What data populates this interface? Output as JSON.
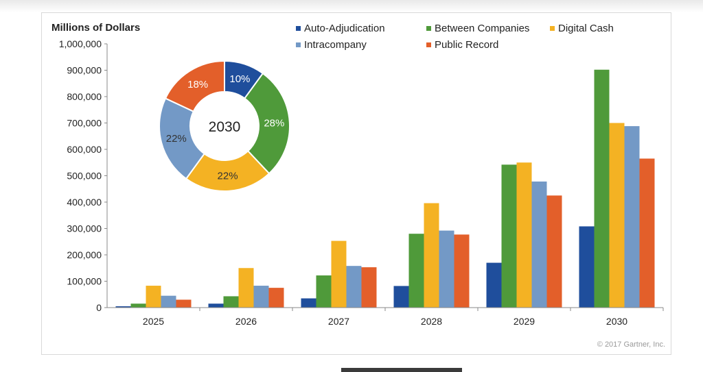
{
  "chart_data": {
    "type": "bar",
    "ylabel": "Millions of Dollars",
    "ylim": [
      0,
      1000000
    ],
    "yticks": [
      0,
      100000,
      200000,
      300000,
      400000,
      500000,
      600000,
      700000,
      800000,
      900000,
      1000000
    ],
    "ytick_labels": [
      "0",
      "100,000",
      "200,000",
      "300,000",
      "400,000",
      "500,000",
      "600,000",
      "700,000",
      "800,000",
      "900,000",
      "1,000,000"
    ],
    "categories": [
      "2025",
      "2026",
      "2027",
      "2028",
      "2029",
      "2030"
    ],
    "legend_position": "top-right",
    "series": [
      {
        "name": "Auto-Adjudication",
        "color": "#1f4e9c",
        "values": [
          5000,
          15000,
          35000,
          82000,
          170000,
          308000
        ]
      },
      {
        "name": "Between Companies",
        "color": "#4f9a3a",
        "values": [
          15000,
          43000,
          122000,
          280000,
          542000,
          902000
        ]
      },
      {
        "name": "Digital Cash",
        "color": "#f4b223",
        "values": [
          83000,
          150000,
          253000,
          396000,
          550000,
          700000
        ]
      },
      {
        "name": "Intracompany",
        "color": "#7399c6",
        "values": [
          45000,
          83000,
          158000,
          292000,
          478000,
          688000
        ]
      },
      {
        "name": "Public Record",
        "color": "#e35f2a",
        "values": [
          30000,
          75000,
          153000,
          277000,
          425000,
          565000
        ]
      }
    ],
    "donut": {
      "center_label": "2030",
      "slices": [
        {
          "name": "Auto-Adjudication",
          "value": 10,
          "label": "10%",
          "color": "#1f4e9c",
          "text_color": "#ffffff"
        },
        {
          "name": "Between Companies",
          "value": 28,
          "label": "28%",
          "color": "#4f9a3a",
          "text_color": "#ffffff"
        },
        {
          "name": "Digital Cash",
          "value": 22,
          "label": "22%",
          "color": "#f4b223",
          "text_color": "#333333"
        },
        {
          "name": "Intracompany",
          "value": 22,
          "label": "22%",
          "color": "#7399c6",
          "text_color": "#333333"
        },
        {
          "name": "Public Record",
          "value": 18,
          "label": "18%",
          "color": "#e35f2a",
          "text_color": "#ffffff"
        }
      ]
    },
    "copyright": "© 2017 Gartner, Inc."
  }
}
